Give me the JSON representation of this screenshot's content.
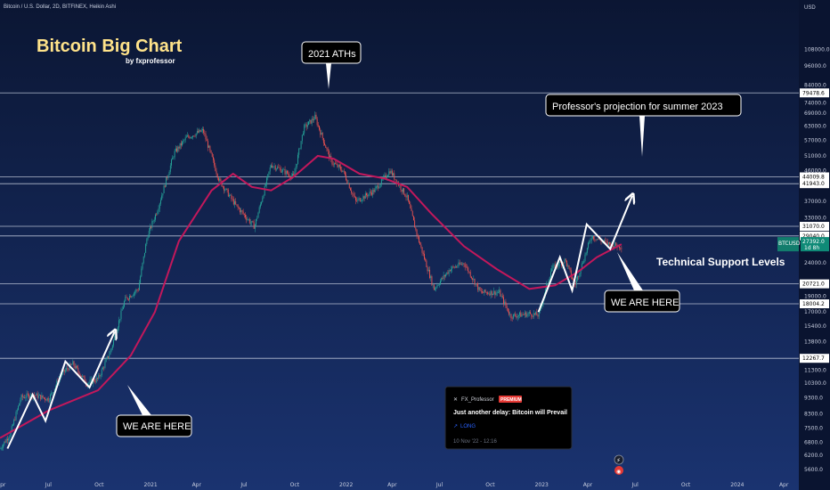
{
  "header": {
    "symbol_line": "Bitcoin / U.S. Dollar, 2D, BITFINEX, Heikin Ashi",
    "currency": "USD"
  },
  "title": {
    "main": "Bitcoin Big Chart",
    "byline": "by fxprofessor"
  },
  "annotations": {
    "ath": "2021 ATHs",
    "projection": "Professor's projection for summer 2023",
    "support": "Technical Support Levels",
    "we_are_here_left": "WE ARE HERE",
    "we_are_here_right": "WE ARE HERE"
  },
  "post_card": {
    "author": "FX_Professor",
    "badge": "PREMIUM",
    "headline": "Just another delay: Bitcoin will Prevail",
    "direction": "LONG",
    "timestamp": "10 Nov '22 - 12:16"
  },
  "colors": {
    "background_top": "#0b1633",
    "background_bottom": "#1a3370",
    "up_candle": "#26a69a",
    "down_candle": "#ef5350",
    "moving_average": "#c2185b",
    "levels": "#cfd6e6",
    "arrows": "#ffffff"
  },
  "chart_data": {
    "type": "candlestick",
    "y_scale": "log",
    "ylim": [
      5300,
      140000
    ],
    "x_start": "2020-04-01",
    "x_end": "2024-05-01",
    "x_tick_labels": [
      "Apr",
      "Jul",
      "Oct",
      "2021",
      "Apr",
      "Jul",
      "Oct",
      "2022",
      "Apr",
      "Jul",
      "Oct",
      "2023",
      "Apr",
      "Jul",
      "Oct",
      "2024",
      "Apr"
    ],
    "y_tick_labels": [
      "108000.0",
      "96000.0",
      "84000.0",
      "74000.0",
      "69000.0",
      "63000.0",
      "57000.0",
      "51000.0",
      "46000.0",
      "37000.0",
      "33000.0",
      "24000.0",
      "19000.0",
      "17000.0",
      "15400.0",
      "13800.0",
      "11300.0",
      "10300.0",
      "9300.0",
      "8300.0",
      "7500.0",
      "6800.0",
      "6200.0",
      "5600.0"
    ],
    "horizontal_levels": [
      "79478.6",
      "44009.8",
      "41943.0",
      "31070.0",
      "29040.0",
      "20721.0",
      "18004.2",
      "12267.7"
    ],
    "current_price": "27392.0",
    "current_tag_symbol": "BTCUSD",
    "current_tag_countdown": "1d 8h",
    "moving_average_label": "",
    "price_path": [
      [
        "2020-04-01",
        6500
      ],
      [
        "2020-04-20",
        7200
      ],
      [
        "2020-05-10",
        9300
      ],
      [
        "2020-06-01",
        9500
      ],
      [
        "2020-07-01",
        9200
      ],
      [
        "2020-07-25",
        11000
      ],
      [
        "2020-08-15",
        11800
      ],
      [
        "2020-09-10",
        10300
      ],
      [
        "2020-10-01",
        10600
      ],
      [
        "2020-10-25",
        13000
      ],
      [
        "2020-11-20",
        18500
      ],
      [
        "2020-12-15",
        20000
      ],
      [
        "2021-01-01",
        29000
      ],
      [
        "2021-01-20",
        35000
      ],
      [
        "2021-02-20",
        52000
      ],
      [
        "2021-03-15",
        58000
      ],
      [
        "2021-04-15",
        61000
      ],
      [
        "2021-05-15",
        43000
      ],
      [
        "2021-06-15",
        36000
      ],
      [
        "2021-07-20",
        31000
      ],
      [
        "2021-08-20",
        48000
      ],
      [
        "2021-09-10",
        46000
      ],
      [
        "2021-10-01",
        44000
      ],
      [
        "2021-10-20",
        62000
      ],
      [
        "2021-11-10",
        67000
      ],
      [
        "2021-12-10",
        49000
      ],
      [
        "2022-01-01",
        46000
      ],
      [
        "2022-01-25",
        37000
      ],
      [
        "2022-03-01",
        40000
      ],
      [
        "2022-03-30",
        46000
      ],
      [
        "2022-05-01",
        38000
      ],
      [
        "2022-05-20",
        29000
      ],
      [
        "2022-06-20",
        20000
      ],
      [
        "2022-07-20",
        23000
      ],
      [
        "2022-08-15",
        24000
      ],
      [
        "2022-09-15",
        19500
      ],
      [
        "2022-10-20",
        19500
      ],
      [
        "2022-11-10",
        16500
      ],
      [
        "2022-12-15",
        16800
      ],
      [
        "2023-01-01",
        16600
      ],
      [
        "2023-01-25",
        23000
      ],
      [
        "2023-02-20",
        24500
      ],
      [
        "2023-03-10",
        20500
      ],
      [
        "2023-04-10",
        29000
      ],
      [
        "2023-05-10",
        27500
      ],
      [
        "2023-06-05",
        27000
      ]
    ],
    "moving_average_path": [
      [
        "2020-04-01",
        7000
      ],
      [
        "2020-07-01",
        8500
      ],
      [
        "2020-10-01",
        9800
      ],
      [
        "2020-12-01",
        12500
      ],
      [
        "2021-01-15",
        17000
      ],
      [
        "2021-03-01",
        28000
      ],
      [
        "2021-05-01",
        40000
      ],
      [
        "2021-06-10",
        45000
      ],
      [
        "2021-07-15",
        41000
      ],
      [
        "2021-08-20",
        40000
      ],
      [
        "2021-10-01",
        44000
      ],
      [
        "2021-11-15",
        51000
      ],
      [
        "2021-12-15",
        50000
      ],
      [
        "2022-02-01",
        45000
      ],
      [
        "2022-03-20",
        43500
      ],
      [
        "2022-05-01",
        41000
      ],
      [
        "2022-06-15",
        34000
      ],
      [
        "2022-08-15",
        27000
      ],
      [
        "2022-10-15",
        23000
      ],
      [
        "2022-12-15",
        20000
      ],
      [
        "2023-02-01",
        20500
      ],
      [
        "2023-03-15",
        22500
      ],
      [
        "2023-04-20",
        25000
      ],
      [
        "2023-06-05",
        27400
      ]
    ],
    "arrows": {
      "wave_2020": [
        [
          "2020-04-15",
          6500
        ],
        [
          "2020-06-01",
          9500
        ],
        [
          "2020-06-25",
          7900
        ],
        [
          "2020-08-01",
          12000
        ],
        [
          "2020-09-15",
          10000
        ],
        [
          "2020-11-01",
          14800
        ]
      ],
      "wave_2023": [
        [
          "2023-01-01",
          17000
        ],
        [
          "2023-02-10",
          25000
        ],
        [
          "2023-03-05",
          19800
        ],
        [
          "2023-04-01",
          31500
        ],
        [
          "2023-05-15",
          26500
        ],
        [
          "2023-06-25",
          38500
        ]
      ]
    }
  }
}
